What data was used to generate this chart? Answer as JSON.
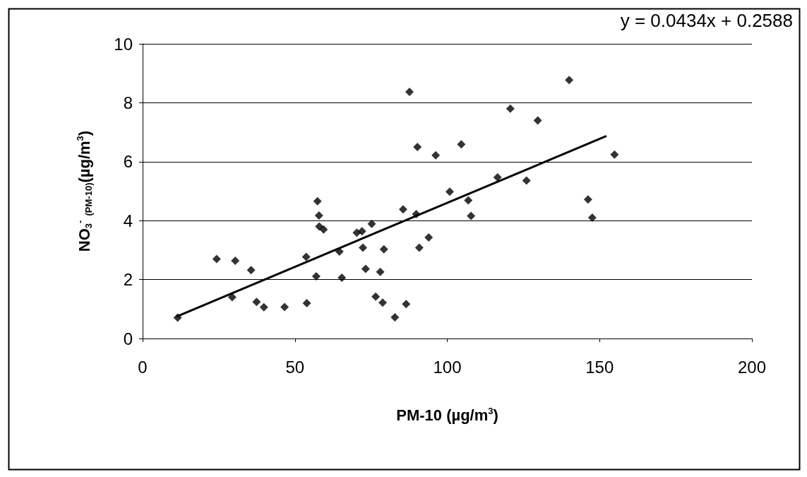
{
  "chart_data": {
    "type": "scatter",
    "xlabel": "PM-10 (µg/m$^{3}$)",
    "ylabel": "NO$_{3}$$^{-}$ $_{(PM-10)}$(µg/m$^{3}$)",
    "annotations": [
      "y = 0.0434x + 0.2588"
    ],
    "xlim": [
      0,
      200
    ],
    "xticks": [
      0,
      50,
      100,
      150,
      200
    ],
    "ylim": [
      0,
      10
    ],
    "yticks": [
      0,
      2,
      4,
      6,
      8,
      10
    ],
    "grid": "y",
    "marker": "diamond",
    "series": [
      {
        "color": "#000000",
        "x": [
          11.5,
          24.3,
          30.4,
          35.6,
          29.4,
          37.4,
          39.8,
          46.6,
          53.9,
          53.7,
          57.0,
          65.4,
          64.6,
          57.4,
          57.9,
          58.0,
          59.4,
          70.3,
          72.0,
          75.2,
          72.3,
          79.2,
          73.2,
          78.0,
          76.5,
          78.8,
          82.8,
          86.5,
          85.5,
          89.8,
          90.8,
          93.9,
          106.9,
          107.8,
          87.6,
          140.0,
          120.7,
          129.7,
          90.2,
          96.2,
          104.6,
          154.9,
          116.5,
          126.0,
          100.8,
          146.2,
          147.6
        ],
        "values": [
          0.71,
          2.7,
          2.64,
          2.32,
          1.4,
          1.24,
          1.06,
          1.07,
          1.2,
          2.77,
          2.11,
          2.06,
          2.95,
          4.66,
          4.17,
          3.8,
          3.7,
          3.59,
          3.64,
          3.89,
          3.08,
          3.03,
          2.36,
          2.26,
          1.42,
          1.22,
          0.72,
          1.17,
          4.38,
          4.22,
          3.08,
          3.43,
          4.69,
          4.16,
          8.37,
          8.77,
          7.8,
          7.4,
          6.5,
          6.22,
          6.59,
          6.24,
          5.47,
          5.36,
          4.98,
          4.72,
          4.1
        ]
      },
      {
        "type": "line",
        "color": "#000000",
        "x": [
          11.5,
          152
        ],
        "values": [
          0.76,
          6.86
        ],
        "marker": "none"
      }
    ]
  }
}
